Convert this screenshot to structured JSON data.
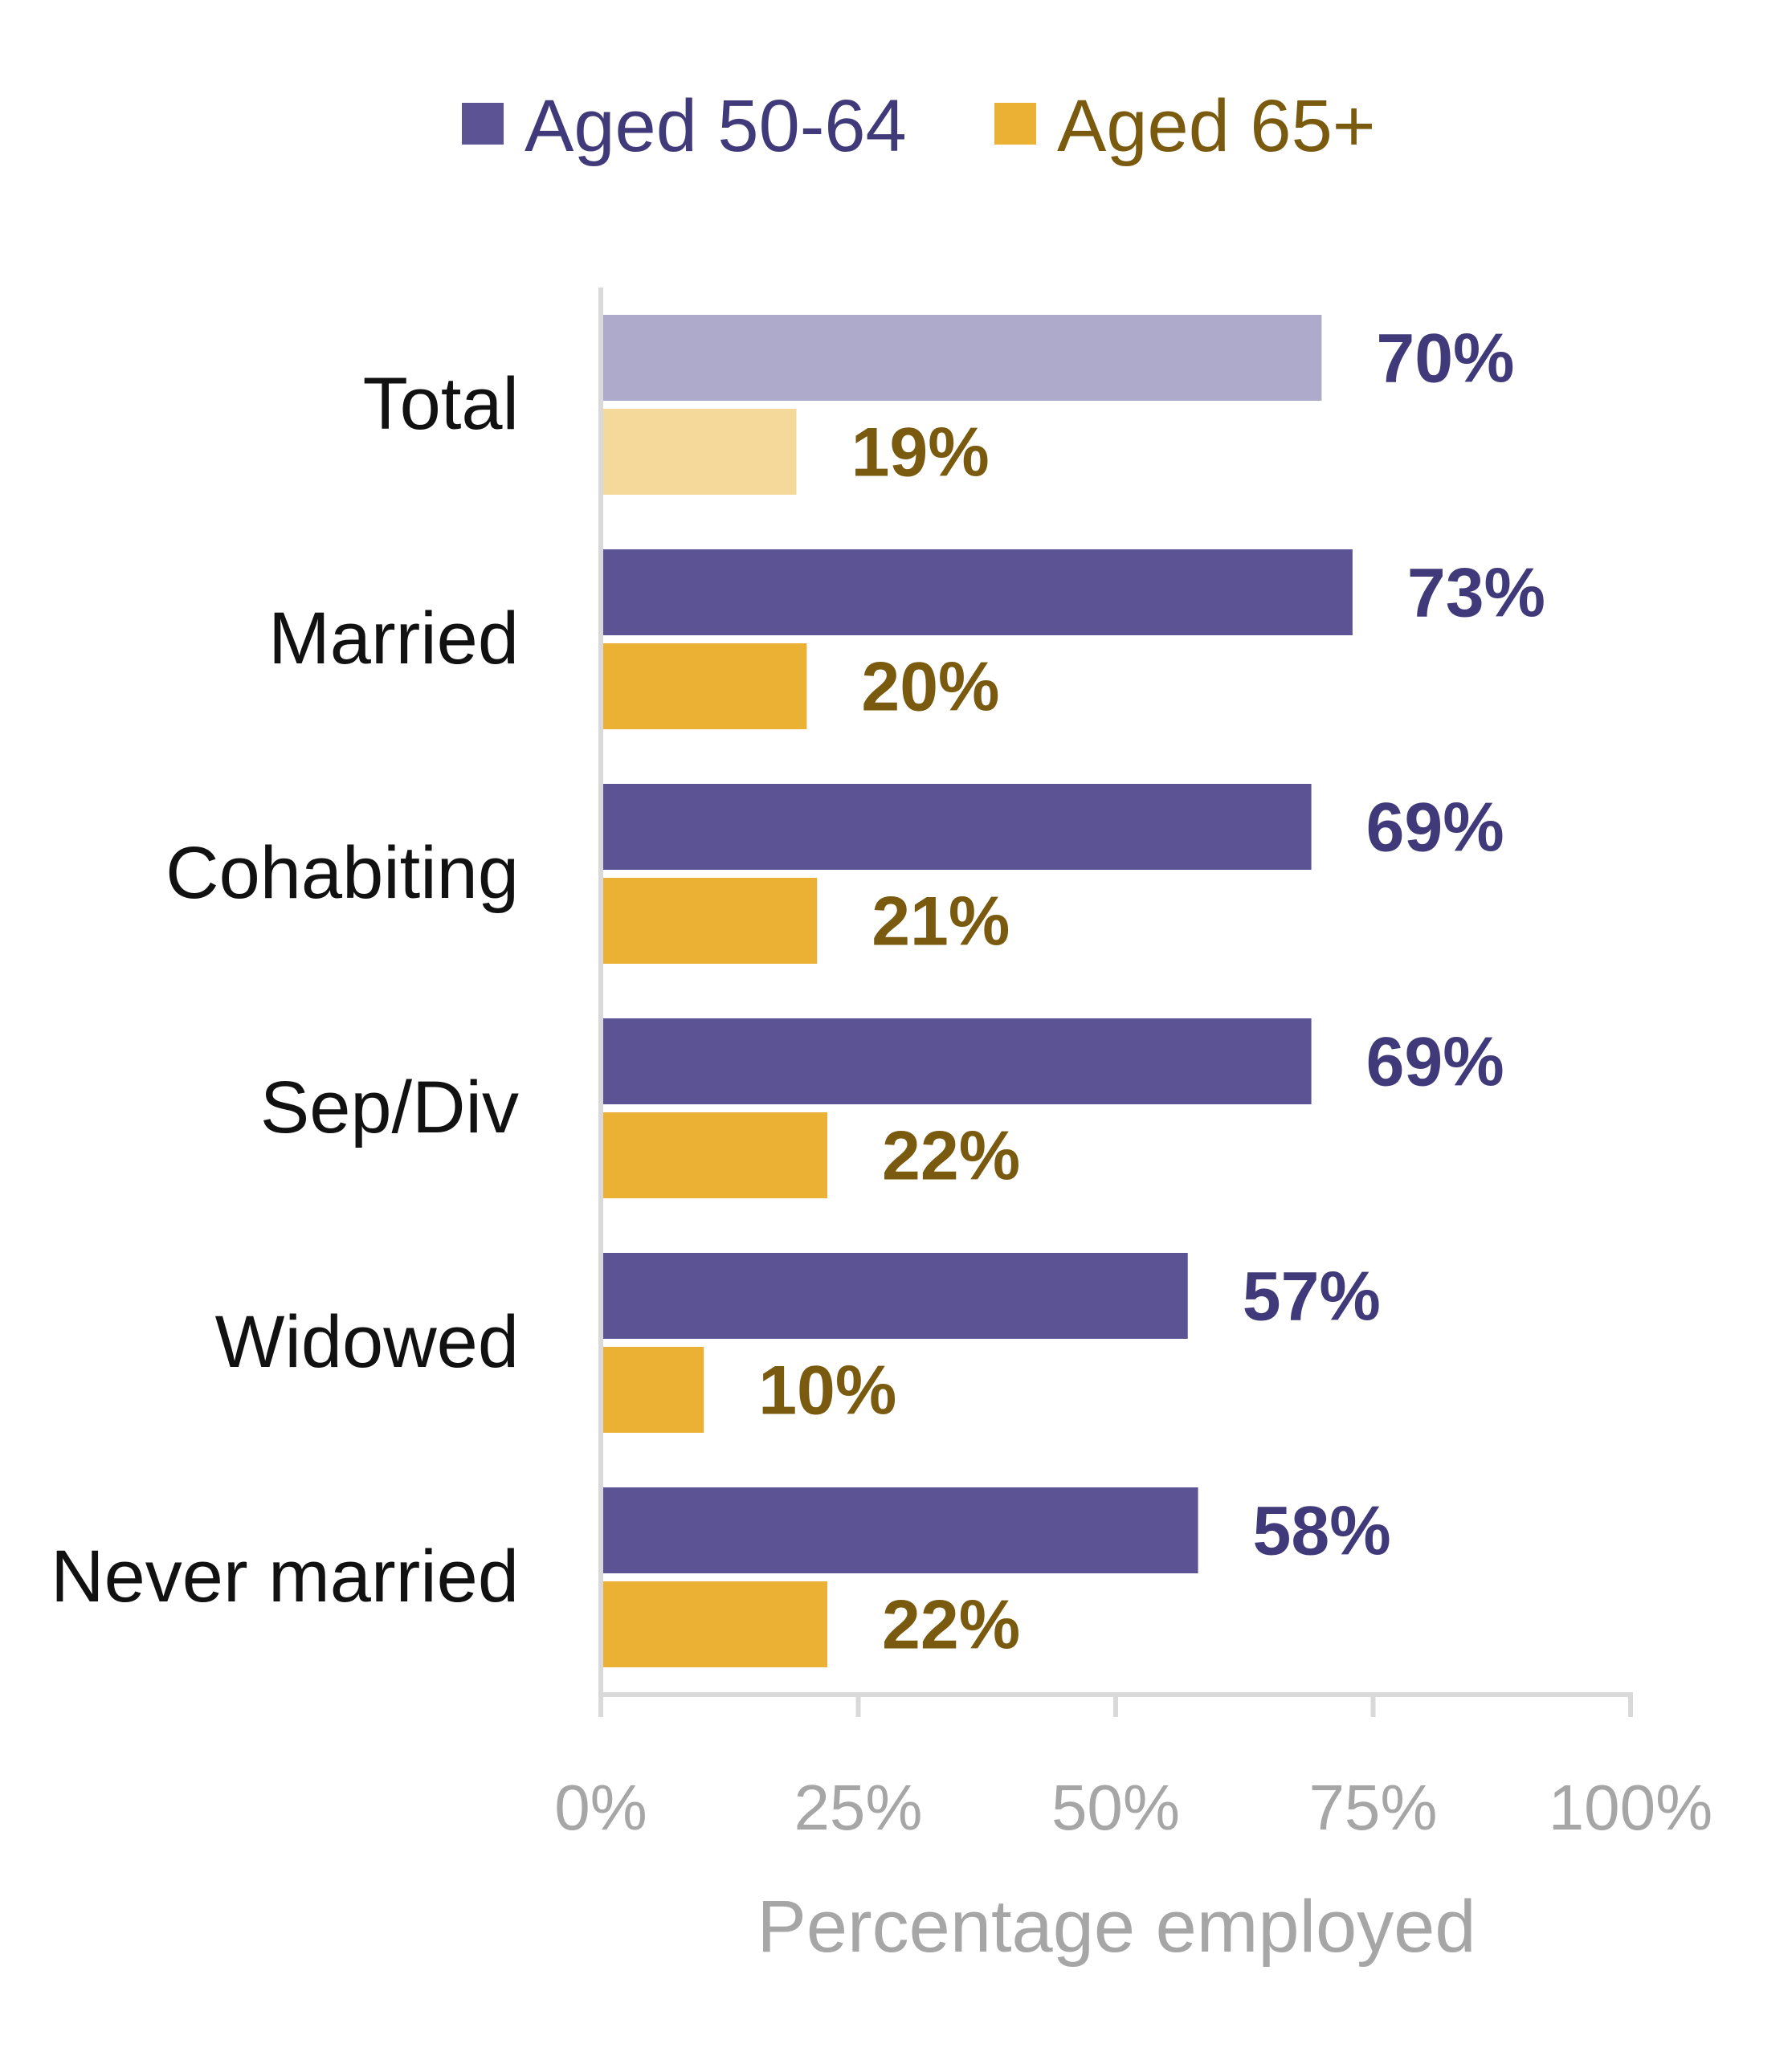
{
  "chart_data": {
    "type": "bar",
    "orientation": "horizontal",
    "categories": [
      "Total",
      "Married",
      "Cohabiting",
      "Sep/Div",
      "Widowed",
      "Never married"
    ],
    "series": [
      {
        "name": "Aged 50-64",
        "values": [
          70,
          73,
          69,
          69,
          57,
          58
        ],
        "labels": [
          "70%",
          "73%",
          "69%",
          "69%",
          "57%",
          "58%"
        ],
        "color": "#5b5394",
        "highlight_color": "#aeaacb",
        "label_color": "#413a7a"
      },
      {
        "name": "Aged 65+",
        "values": [
          19,
          20,
          21,
          22,
          10,
          22
        ],
        "labels": [
          "19%",
          "20%",
          "21%",
          "22%",
          "10%",
          "22%"
        ],
        "color": "#ebb134",
        "highlight_color": "#f5d99b",
        "label_color": "#7a5a0e"
      }
    ],
    "highlight_category": "Total",
    "xlabel": "Percentage employed",
    "xlim": [
      0,
      100
    ],
    "xticks": [
      0,
      25,
      50,
      75,
      100
    ],
    "xtick_labels": [
      "0%",
      "25%",
      "50%",
      "75%",
      "100%"
    ],
    "legend_position": "top",
    "grid": false,
    "axis_color": "#d9d9d9"
  }
}
